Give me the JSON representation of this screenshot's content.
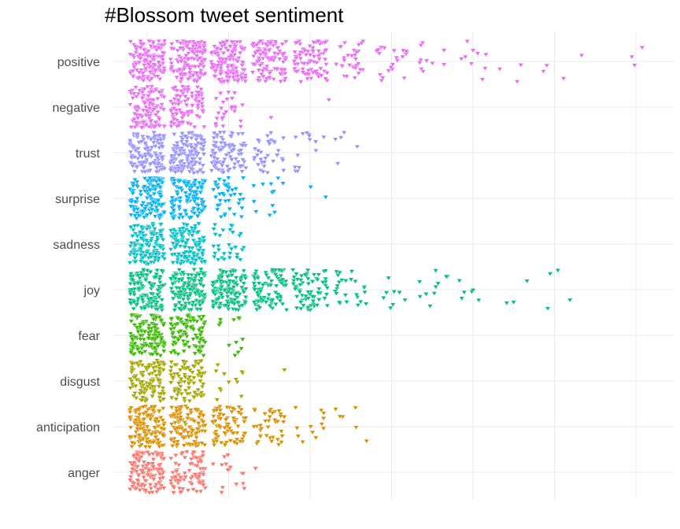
{
  "chart_data": {
    "type": "scatter",
    "title": "#Blossom tweet sentiment",
    "xlabel": "",
    "ylabel": "",
    "marker": "down-triangle",
    "jitter": true,
    "grid": true,
    "legend": "none",
    "xlim": [
      -0.2,
      6.4
    ],
    "x_gridlines": [
      0,
      1,
      2,
      3,
      4,
      5,
      6
    ],
    "categories": [
      "positive",
      "negative",
      "trust",
      "surprise",
      "sadness",
      "joy",
      "fear",
      "disgust",
      "anticipation",
      "anger"
    ],
    "colors": {
      "positive": "#E76BF3",
      "negative": "#E76BF3",
      "trust": "#9590FF",
      "surprise": "#00B0F6",
      "sadness": "#00BFC4",
      "joy": "#00BF7D",
      "fear": "#39B600",
      "disgust": "#A3A500",
      "anticipation": "#D89000",
      "anger": "#F8766D"
    },
    "series": [
      {
        "category": "positive",
        "color": "#E76BF3",
        "clusters": [
          {
            "x": 0,
            "n": 140
          },
          {
            "x": 0.5,
            "n": 140
          },
          {
            "x": 1,
            "n": 140
          },
          {
            "x": 1.5,
            "n": 110
          },
          {
            "x": 2,
            "n": 80
          },
          {
            "x": 2.5,
            "n": 30
          },
          {
            "x": 3,
            "n": 22
          },
          {
            "x": 3.5,
            "n": 10
          },
          {
            "x": 4,
            "n": 9
          },
          {
            "x": 4.5,
            "n": 3
          },
          {
            "x": 5,
            "n": 3
          },
          {
            "x": 5.5,
            "n": 1
          },
          {
            "x": 6,
            "n": 1
          },
          {
            "x": 6.1,
            "n": 2
          }
        ]
      },
      {
        "category": "negative",
        "color": "#E76BF3",
        "clusters": [
          {
            "x": 0,
            "n": 120
          },
          {
            "x": 0.5,
            "n": 110
          },
          {
            "x": 1,
            "n": 25
          },
          {
            "x": 1.5,
            "n": 1
          },
          {
            "x": 2.2,
            "n": 1
          }
        ]
      },
      {
        "category": "trust",
        "color": "#9590FF",
        "clusters": [
          {
            "x": 0,
            "n": 130
          },
          {
            "x": 0.5,
            "n": 130
          },
          {
            "x": 1,
            "n": 90
          },
          {
            "x": 1.5,
            "n": 35
          },
          {
            "x": 2,
            "n": 14
          },
          {
            "x": 2.5,
            "n": 5
          }
        ]
      },
      {
        "category": "surprise",
        "color": "#00B0F6",
        "clusters": [
          {
            "x": 0,
            "n": 140
          },
          {
            "x": 0.5,
            "n": 120
          },
          {
            "x": 1,
            "n": 40
          },
          {
            "x": 1.5,
            "n": 12
          },
          {
            "x": 2,
            "n": 2
          }
        ]
      },
      {
        "category": "sadness",
        "color": "#00BFC4",
        "clusters": [
          {
            "x": 0,
            "n": 140
          },
          {
            "x": 0.5,
            "n": 120
          },
          {
            "x": 1,
            "n": 30
          }
        ]
      },
      {
        "category": "joy",
        "color": "#00BF7D",
        "clusters": [
          {
            "x": 0,
            "n": 140
          },
          {
            "x": 0.5,
            "n": 140
          },
          {
            "x": 1,
            "n": 130
          },
          {
            "x": 1.5,
            "n": 90
          },
          {
            "x": 2,
            "n": 70
          },
          {
            "x": 2.5,
            "n": 25
          },
          {
            "x": 3,
            "n": 8
          },
          {
            "x": 3.5,
            "n": 10
          },
          {
            "x": 4,
            "n": 6
          },
          {
            "x": 4.5,
            "n": 3
          },
          {
            "x": 5,
            "n": 1
          },
          {
            "x": 5.1,
            "n": 3
          }
        ]
      },
      {
        "category": "fear",
        "color": "#39B600",
        "clusters": [
          {
            "x": 0,
            "n": 140
          },
          {
            "x": 0.5,
            "n": 100
          },
          {
            "x": 1,
            "n": 12
          }
        ]
      },
      {
        "category": "disgust",
        "color": "#A3A500",
        "clusters": [
          {
            "x": 0,
            "n": 120
          },
          {
            "x": 0.5,
            "n": 90
          },
          {
            "x": 1,
            "n": 12
          },
          {
            "x": 1.5,
            "n": 1
          }
        ]
      },
      {
        "category": "anticipation",
        "color": "#D89000",
        "clusters": [
          {
            "x": 0,
            "n": 140
          },
          {
            "x": 0.5,
            "n": 120
          },
          {
            "x": 1,
            "n": 80
          },
          {
            "x": 1.5,
            "n": 40
          },
          {
            "x": 2,
            "n": 12
          },
          {
            "x": 2.5,
            "n": 6
          }
        ]
      },
      {
        "category": "anger",
        "color": "#F8766D",
        "clusters": [
          {
            "x": 0,
            "n": 130
          },
          {
            "x": 0.5,
            "n": 90
          },
          {
            "x": 1,
            "n": 15
          },
          {
            "x": 1.5,
            "n": 1
          }
        ]
      }
    ]
  }
}
